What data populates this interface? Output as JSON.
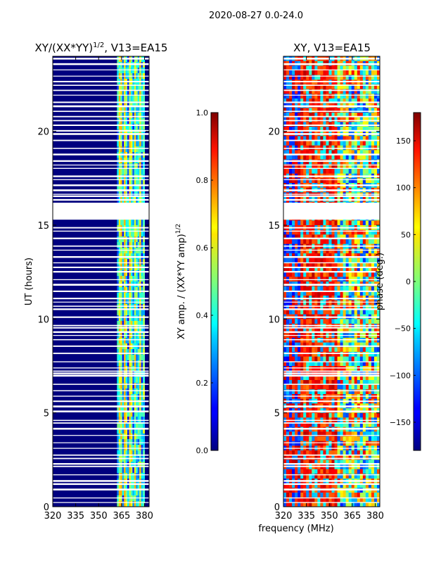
{
  "figure": {
    "suptitle": "2020-08-27 0.0-24.0",
    "xlabel": "frequency (MHz)"
  },
  "chart_data": [
    {
      "type": "heatmap",
      "title": "XY/(XX*YY)^{1/2}, V13=EA15",
      "title_main": "XY/(XX*YY)",
      "title_sup": "1/2",
      "title_tail": ", V13=EA15",
      "xlabel": "",
      "ylabel": "UT (hours)",
      "xlim": [
        320,
        383
      ],
      "ylim": [
        0,
        24
      ],
      "xticks": [
        320,
        335,
        350,
        365,
        380
      ],
      "yticks": [
        0,
        5,
        10,
        15,
        20
      ],
      "colorbar": {
        "label": "XY amp. / (XX*YY amp)^{1/2}",
        "label_main": "XY amp. / (XX*YY amp)",
        "label_sup": "1/2",
        "range": [
          0.0,
          1.0
        ],
        "ticks": [
          0.0,
          0.2,
          0.4,
          0.6,
          0.8,
          1.0
        ],
        "tick_labels": [
          "0.0",
          "0.2",
          "0.4",
          "0.6",
          "0.8",
          "1.0"
        ],
        "colormap": "jet"
      },
      "flagged_gap_hours": [
        15.3,
        16.2
      ],
      "bright_band_mhz": [
        362,
        380
      ]
    },
    {
      "type": "heatmap",
      "title": "XY, V13=EA15",
      "xlabel": "",
      "ylabel": "",
      "xlim": [
        320,
        383
      ],
      "ylim": [
        0,
        24
      ],
      "xticks": [
        320,
        335,
        350,
        365,
        380
      ],
      "yticks": [
        0,
        5,
        10,
        15,
        20
      ],
      "colorbar": {
        "label": "phase (deg.)",
        "range": [
          -180,
          180
        ],
        "ticks": [
          -150,
          -100,
          -50,
          0,
          50,
          100,
          150
        ],
        "tick_labels": [
          "−150",
          "−100",
          "−50",
          "0",
          "50",
          "100",
          "150"
        ],
        "colormap": "jet"
      },
      "flagged_gap_hours": [
        15.3,
        16.2
      ]
    }
  ]
}
